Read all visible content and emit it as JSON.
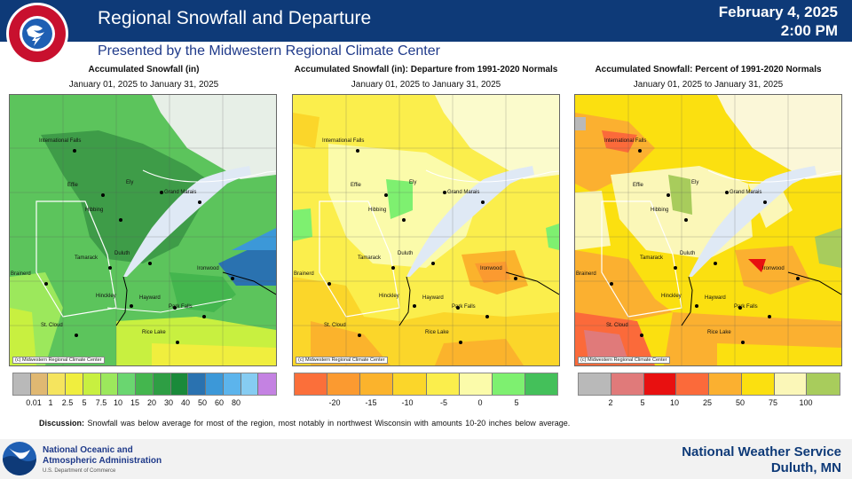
{
  "header": {
    "title": "Regional Snowfall and Departure",
    "date": "February 4, 2025",
    "time": "2:00 PM",
    "subtitle": "Presented by the Midwestern Regional Climate Center",
    "logo_text": "NATIONAL WEATHER SERVICE"
  },
  "panels": [
    {
      "title": "Accumulated Snowfall (in)",
      "dates": "January 01, 2025 to January 31, 2025",
      "credit": "(c) Midwestern Regional Climate Center",
      "legend": {
        "colors": [
          "#b9b9b9",
          "#e0b872",
          "#f5e45e",
          "#f0ee3e",
          "#c8f040",
          "#9ce85c",
          "#6ad670",
          "#44b64e",
          "#2e9e44",
          "#1a8a3a",
          "#2a72b0",
          "#3c98d8",
          "#5cb4ec",
          "#86ccf2",
          "#c482e2"
        ],
        "labels": [
          "0.01",
          "1",
          "2.5",
          "5",
          "7.5",
          "10",
          "15",
          "20",
          "30",
          "40",
          "50",
          "60",
          "80"
        ]
      }
    },
    {
      "title": "Accumulated Snowfall (in): Departure from 1991-2020 Normals",
      "dates": "January 01, 2025 to January 31, 2025",
      "credit": "(c) Midwestern Regional Climate Center",
      "legend": {
        "colors": [
          "#fb6f3a",
          "#fb9a30",
          "#fbb32c",
          "#fbd62a",
          "#fbee4c",
          "#fbfbaa",
          "#7ef070",
          "#44c05a"
        ],
        "labels": [
          "-20",
          "-15",
          "-10",
          "-5",
          "0",
          "5"
        ]
      }
    },
    {
      "title": "Accumulated Snowfall: Percent of 1991-2020 Normals",
      "dates": "January 01, 2025 to January 31, 2025",
      "credit": "(c) Midwestern Regional Climate Center",
      "legend": {
        "colors": [
          "#b9b9b9",
          "#e07a7a",
          "#e81010",
          "#fb6a3a",
          "#fbb030",
          "#fbe010",
          "#fbf7b8",
          "#a8cc5c"
        ],
        "labels": [
          "2",
          "5",
          "10",
          "25",
          "50",
          "75",
          "100"
        ]
      }
    }
  ],
  "cities": [
    "International Falls",
    "Effie",
    "Ely",
    "Grand Marais",
    "Hibbing",
    "Duluth",
    "Tamarack",
    "Ironwood",
    "Brainerd",
    "Hinckley",
    "Hayward",
    "Park Falls",
    "St. Cloud",
    "Rice Lake"
  ],
  "discussion": {
    "label": "Discussion:",
    "text": "Snowfall was below average for most of the region, most notably in northwest Wisconsin with amounts 10-20 inches below average."
  },
  "footer": {
    "noaa_line1": "National Oceanic and",
    "noaa_line2": "Atmospheric Administration",
    "noaa_dept": "U.S. Department of Commerce",
    "noaa_logo_text": "NOAA",
    "nws_line1": "National Weather Service",
    "nws_line2": "Duluth, MN"
  }
}
